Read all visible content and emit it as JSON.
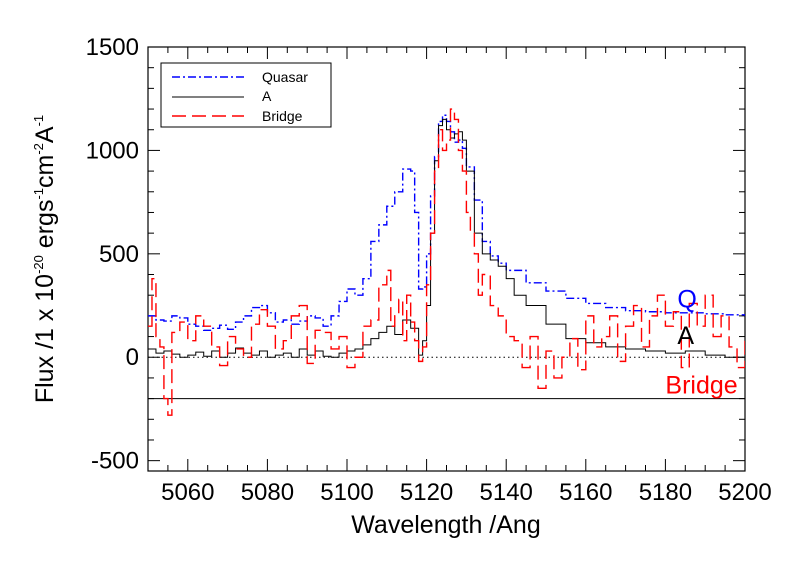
{
  "chart_data": {
    "type": "line",
    "xlabel": "Wavelength /Ang",
    "ylabel_parts": {
      "a": "Flux /1 x 10",
      "b": "-20",
      "c": " ergs",
      "d": "-1",
      "e": "cm",
      "f": "-2",
      "g": "A",
      "h": "-1"
    },
    "xlim": [
      5050,
      5200
    ],
    "ylim": [
      -550,
      1500
    ],
    "xticks": [
      5060,
      5080,
      5100,
      5120,
      5140,
      5160,
      5180,
      5200
    ],
    "yticks": [
      -500,
      0,
      500,
      1000,
      1500
    ],
    "x_minor_step": 5,
    "y_minor_step": 100,
    "reference_lines": [
      {
        "name": "zero-level",
        "y": 0,
        "style": "dotted"
      },
      {
        "name": "offset-baseline",
        "y": -200,
        "style": "solid"
      }
    ],
    "legend": {
      "position": "top-left",
      "entries": [
        {
          "label": "Quasar",
          "color": "#0000ff",
          "style": "dash-dot"
        },
        {
          "label": "A",
          "color": "#000000",
          "style": "solid"
        },
        {
          "label": "Bridge",
          "color": "#ff0000",
          "style": "long-dash"
        }
      ]
    },
    "annotations": [
      {
        "text": "Q",
        "x": 5183,
        "y": 240,
        "color": "#0000ff"
      },
      {
        "text": "A",
        "x": 5183,
        "y": 65,
        "color": "#000000"
      },
      {
        "text": "Bridge",
        "x": 5180,
        "y": -175,
        "color": "#ff0000"
      }
    ],
    "series": [
      {
        "name": "Quasar",
        "color": "#0000ff",
        "style": "dash-dot",
        "x": [
          5050,
          5052,
          5054,
          5056,
          5058,
          5060,
          5062,
          5064,
          5066,
          5068,
          5070,
          5072,
          5074,
          5076,
          5078,
          5080,
          5082,
          5084,
          5086,
          5088,
          5090,
          5092,
          5094,
          5096,
          5098,
          5100,
          5102,
          5104,
          5106,
          5108,
          5110,
          5112,
          5114,
          5116,
          5117,
          5118,
          5119,
          5120,
          5121,
          5122,
          5123,
          5124,
          5125,
          5126,
          5127,
          5128,
          5129,
          5130,
          5132,
          5134,
          5136,
          5138,
          5140,
          5145,
          5150,
          5155,
          5160,
          5165,
          5170,
          5175,
          5180,
          5185,
          5190,
          5195,
          5200
        ],
        "values": [
          200,
          180,
          175,
          200,
          190,
          160,
          150,
          130,
          140,
          155,
          135,
          170,
          200,
          240,
          250,
          215,
          170,
          180,
          160,
          175,
          200,
          190,
          150,
          200,
          270,
          330,
          300,
          380,
          560,
          640,
          730,
          800,
          910,
          900,
          700,
          330,
          340,
          500,
          780,
          970,
          1140,
          1170,
          1140,
          1090,
          1040,
          1050,
          1010,
          920,
          760,
          560,
          490,
          455,
          420,
          360,
          320,
          285,
          260,
          240,
          225,
          220,
          215,
          215,
          210,
          205,
          200
        ]
      },
      {
        "name": "A",
        "color": "#000000",
        "style": "solid",
        "x": [
          5050,
          5052,
          5054,
          5056,
          5058,
          5060,
          5062,
          5064,
          5066,
          5068,
          5070,
          5072,
          5074,
          5076,
          5078,
          5080,
          5082,
          5084,
          5086,
          5088,
          5090,
          5092,
          5094,
          5096,
          5098,
          5100,
          5102,
          5104,
          5106,
          5108,
          5110,
          5112,
          5114,
          5116,
          5118,
          5119,
          5120,
          5121,
          5122,
          5123,
          5124,
          5125,
          5126,
          5127,
          5128,
          5129,
          5130,
          5132,
          5134,
          5136,
          5138,
          5140,
          5142,
          5145,
          5150,
          5155,
          5160,
          5165,
          5170,
          5175,
          5180,
          5185,
          5190,
          5195,
          5200
        ],
        "values": [
          40,
          20,
          30,
          15,
          0,
          10,
          25,
          5,
          30,
          0,
          20,
          45,
          20,
          10,
          30,
          0,
          10,
          20,
          0,
          40,
          10,
          30,
          5,
          0,
          20,
          30,
          40,
          60,
          90,
          120,
          150,
          110,
          180,
          140,
          10,
          80,
          250,
          600,
          950,
          1120,
          1150,
          1100,
          1060,
          1080,
          1090,
          1050,
          900,
          600,
          500,
          470,
          440,
          380,
          300,
          250,
          160,
          90,
          70,
          50,
          40,
          30,
          20,
          30,
          10,
          0,
          -30
        ]
      },
      {
        "name": "Bridge",
        "color": "#ff0000",
        "style": "long-dash",
        "x": [
          5050,
          5051,
          5052,
          5053,
          5054,
          5055,
          5056,
          5058,
          5060,
          5062,
          5064,
          5066,
          5068,
          5070,
          5072,
          5074,
          5076,
          5078,
          5080,
          5082,
          5084,
          5086,
          5088,
          5090,
          5092,
          5094,
          5096,
          5098,
          5100,
          5102,
          5104,
          5106,
          5108,
          5110,
          5111,
          5112,
          5113,
          5114,
          5115,
          5116,
          5117,
          5118,
          5119,
          5120,
          5121,
          5122,
          5123,
          5124,
          5125,
          5126,
          5127,
          5128,
          5129,
          5130,
          5131,
          5132,
          5133,
          5134,
          5136,
          5138,
          5140,
          5142,
          5144,
          5146,
          5148,
          5150,
          5152,
          5154,
          5156,
          5158,
          5160,
          5162,
          5164,
          5166,
          5168,
          5170,
          5172,
          5174,
          5176,
          5178,
          5180,
          5182,
          5184,
          5186,
          5188,
          5190,
          5192,
          5194,
          5196,
          5198,
          5200
        ],
        "values": [
          150,
          380,
          100,
          50,
          -200,
          -280,
          120,
          170,
          80,
          200,
          150,
          50,
          -40,
          100,
          40,
          0,
          160,
          230,
          150,
          40,
          80,
          200,
          250,
          -30,
          130,
          120,
          40,
          100,
          -50,
          0,
          150,
          180,
          350,
          420,
          150,
          200,
          280,
          80,
          300,
          170,
          80,
          -20,
          50,
          350,
          600,
          900,
          1100,
          1000,
          1050,
          1200,
          1150,
          1000,
          900,
          700,
          600,
          500,
          300,
          400,
          250,
          200,
          100,
          80,
          -50,
          100,
          -150,
          30,
          -100,
          0,
          90,
          -60,
          200,
          50,
          100,
          200,
          -20,
          150,
          250,
          50,
          200,
          300,
          150,
          220,
          -50,
          260,
          150,
          300,
          100,
          200,
          50,
          -50,
          90
        ]
      }
    ]
  }
}
